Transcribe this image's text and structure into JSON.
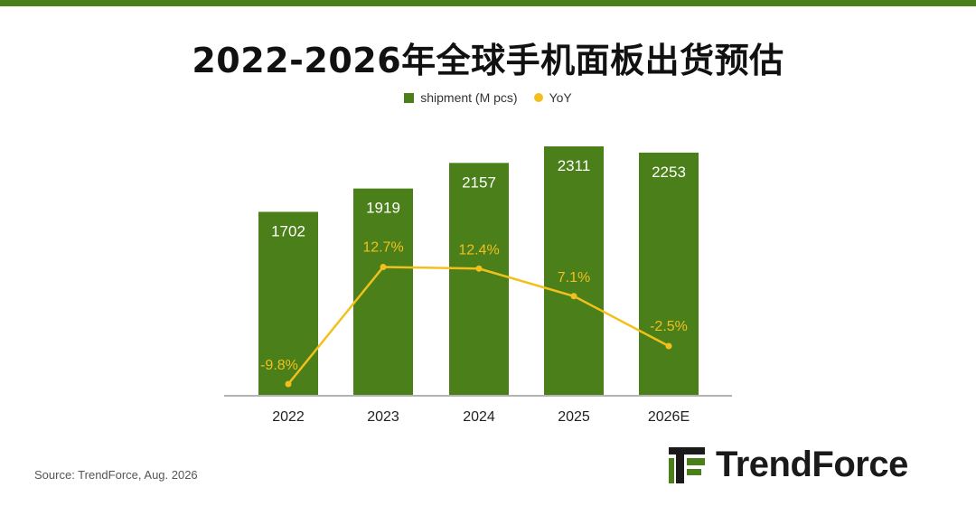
{
  "title": "2022-2026年全球手机面板出货预估",
  "legend": {
    "shipment_label": "shipment (M pcs)",
    "yoy_label": "YoY"
  },
  "source": "Source: TrendForce, Aug. 2026",
  "logo": {
    "text": "TrendForce"
  },
  "colors": {
    "bar": "#4b7f1a",
    "line": "#f2c01c",
    "top_bar": "#4b7f1a"
  },
  "chart_data": {
    "type": "bar",
    "title": "2022-2026年全球手机面板出货预估",
    "categories": [
      "2022",
      "2023",
      "2024",
      "2025",
      "2026E"
    ],
    "series": [
      {
        "name": "shipment (M pcs)",
        "type": "bar",
        "values": [
          1702,
          1919,
          2157,
          2311,
          2253
        ]
      },
      {
        "name": "YoY",
        "type": "line",
        "values": [
          -9.8,
          12.7,
          12.4,
          7.1,
          -2.5
        ],
        "unit": "%"
      }
    ],
    "bar_labels": [
      "1702",
      "1919",
      "2157",
      "2311",
      "2253"
    ],
    "line_labels": [
      "-9.8%",
      "12.7%",
      "12.4%",
      "7.1%",
      "-2.5%"
    ],
    "legend_position": "top-center",
    "grid": false
  }
}
